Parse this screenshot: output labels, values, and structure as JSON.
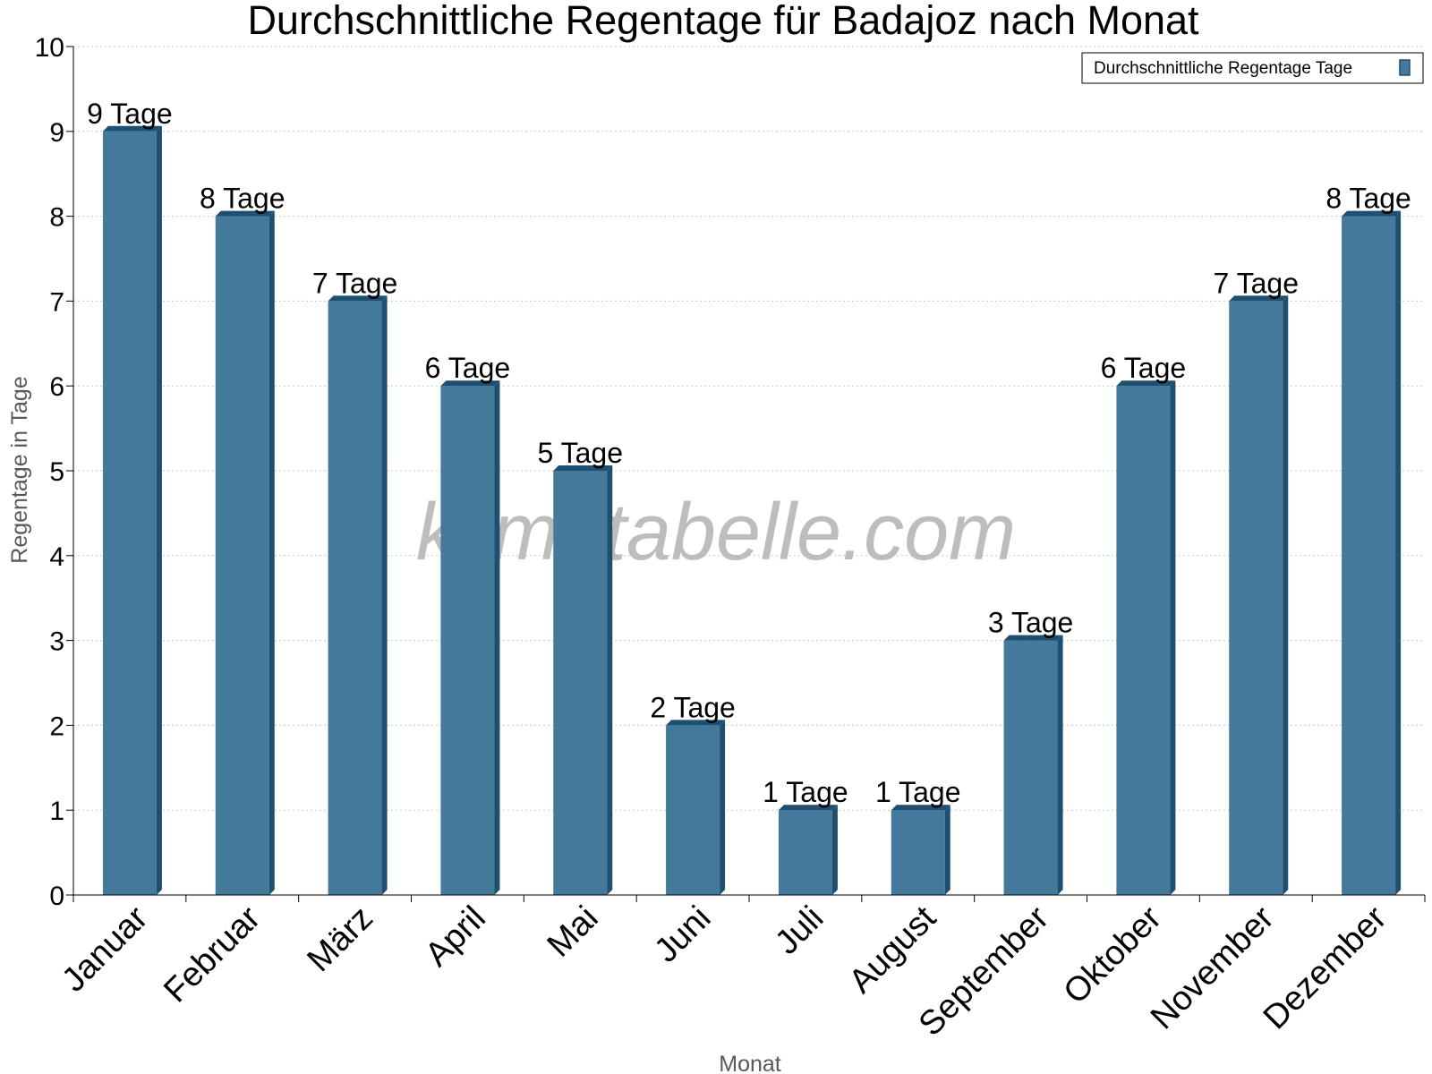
{
  "chart_data": {
    "type": "bar",
    "title": "Durchschnittliche Regentage für Badajoz nach Monat",
    "xlabel": "Monat",
    "ylabel": "Regentage in Tage",
    "categories": [
      "Januar",
      "Februar",
      "März",
      "April",
      "Mai",
      "Juni",
      "Juli",
      "August",
      "September",
      "Oktober",
      "November",
      "Dezember"
    ],
    "series": [
      {
        "name": "Durchschnittliche Regentage Tage",
        "values": [
          9,
          8,
          7,
          6,
          5,
          2,
          1,
          1,
          3,
          6,
          7,
          8
        ],
        "color": "#44799b",
        "side_color": "#1e4f70"
      }
    ],
    "data_labels": [
      "9 Tage",
      "8 Tage",
      "7 Tage",
      "6 Tage",
      "5 Tage",
      "2 Tage",
      "1 Tage",
      "1 Tage",
      "3 Tage",
      "6 Tage",
      "7 Tage",
      "8 Tage"
    ],
    "ylim": [
      0,
      10
    ],
    "y_ticks": [
      "0",
      "1",
      "2",
      "3",
      "4",
      "5",
      "6",
      "7",
      "8",
      "9",
      "10"
    ],
    "grid": true,
    "grid_style": "dotted",
    "legend_position": "top-right",
    "watermark": "klimatabelle.com"
  }
}
